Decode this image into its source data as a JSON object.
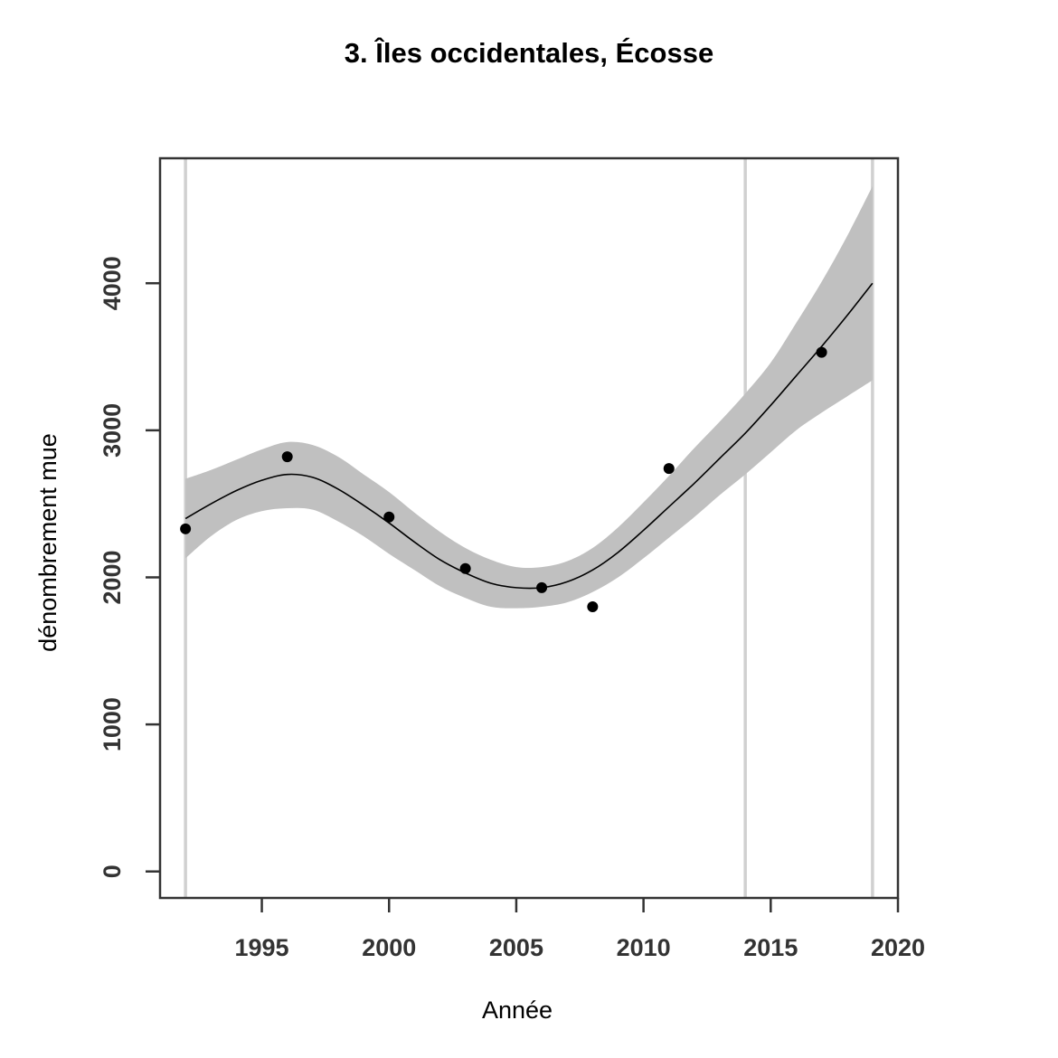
{
  "chart_data": {
    "type": "scatter",
    "title": "3. Îles occidentales, Écosse",
    "xlabel": "Année",
    "ylabel": "dénombrement mue",
    "xlim": [
      1991,
      2020
    ],
    "ylim": [
      -180,
      4850
    ],
    "x_ticks": [
      1995,
      2000,
      2005,
      2010,
      2015,
      2020
    ],
    "y_ticks": [
      0,
      1000,
      2000,
      3000,
      4000
    ],
    "points": [
      {
        "x": 1992,
        "y": 2330
      },
      {
        "x": 1996,
        "y": 2820
      },
      {
        "x": 2000,
        "y": 2410
      },
      {
        "x": 2003,
        "y": 2060
      },
      {
        "x": 2006,
        "y": 1930
      },
      {
        "x": 2008,
        "y": 1800
      },
      {
        "x": 2011,
        "y": 2740
      },
      {
        "x": 2017,
        "y": 3530
      }
    ],
    "fit": [
      {
        "x": 1992,
        "y": 2400,
        "lo": 2130,
        "hi": 2670
      },
      {
        "x": 1993,
        "y": 2500,
        "lo": 2280,
        "hi": 2730
      },
      {
        "x": 1994,
        "y": 2590,
        "lo": 2390,
        "hi": 2800
      },
      {
        "x": 1995,
        "y": 2660,
        "lo": 2450,
        "hi": 2870
      },
      {
        "x": 1996,
        "y": 2700,
        "lo": 2470,
        "hi": 2920
      },
      {
        "x": 1997,
        "y": 2680,
        "lo": 2460,
        "hi": 2900
      },
      {
        "x": 1998,
        "y": 2600,
        "lo": 2380,
        "hi": 2820
      },
      {
        "x": 1999,
        "y": 2490,
        "lo": 2280,
        "hi": 2700
      },
      {
        "x": 2000,
        "y": 2370,
        "lo": 2160,
        "hi": 2580
      },
      {
        "x": 2001,
        "y": 2240,
        "lo": 2050,
        "hi": 2440
      },
      {
        "x": 2002,
        "y": 2120,
        "lo": 1940,
        "hi": 2310
      },
      {
        "x": 2003,
        "y": 2030,
        "lo": 1860,
        "hi": 2200
      },
      {
        "x": 2004,
        "y": 1960,
        "lo": 1800,
        "hi": 2120
      },
      {
        "x": 2005,
        "y": 1930,
        "lo": 1790,
        "hi": 2070
      },
      {
        "x": 2006,
        "y": 1930,
        "lo": 1800,
        "hi": 2070
      },
      {
        "x": 2007,
        "y": 1970,
        "lo": 1830,
        "hi": 2110
      },
      {
        "x": 2008,
        "y": 2050,
        "lo": 1900,
        "hi": 2200
      },
      {
        "x": 2009,
        "y": 2170,
        "lo": 2000,
        "hi": 2340
      },
      {
        "x": 2010,
        "y": 2320,
        "lo": 2130,
        "hi": 2510
      },
      {
        "x": 2011,
        "y": 2480,
        "lo": 2270,
        "hi": 2690
      },
      {
        "x": 2012,
        "y": 2640,
        "lo": 2410,
        "hi": 2880
      },
      {
        "x": 2013,
        "y": 2810,
        "lo": 2560,
        "hi": 3060
      },
      {
        "x": 2014,
        "y": 2980,
        "lo": 2700,
        "hi": 3250
      },
      {
        "x": 2015,
        "y": 3170,
        "lo": 2850,
        "hi": 3460
      },
      {
        "x": 2016,
        "y": 3370,
        "lo": 3000,
        "hi": 3730
      },
      {
        "x": 2017,
        "y": 3570,
        "lo": 3120,
        "hi": 4010
      },
      {
        "x": 2018,
        "y": 3780,
        "lo": 3230,
        "hi": 4320
      },
      {
        "x": 2019,
        "y": 4000,
        "lo": 3340,
        "hi": 4660
      }
    ],
    "vertical_lines": [
      1992,
      2014,
      2019
    ],
    "colors": {
      "band": "#c0c0c0",
      "fit_line": "#000000",
      "points": "#000000",
      "vertical_lines": "#d0d0d0",
      "axes": "#333333"
    },
    "grid": false,
    "legend": "none"
  }
}
